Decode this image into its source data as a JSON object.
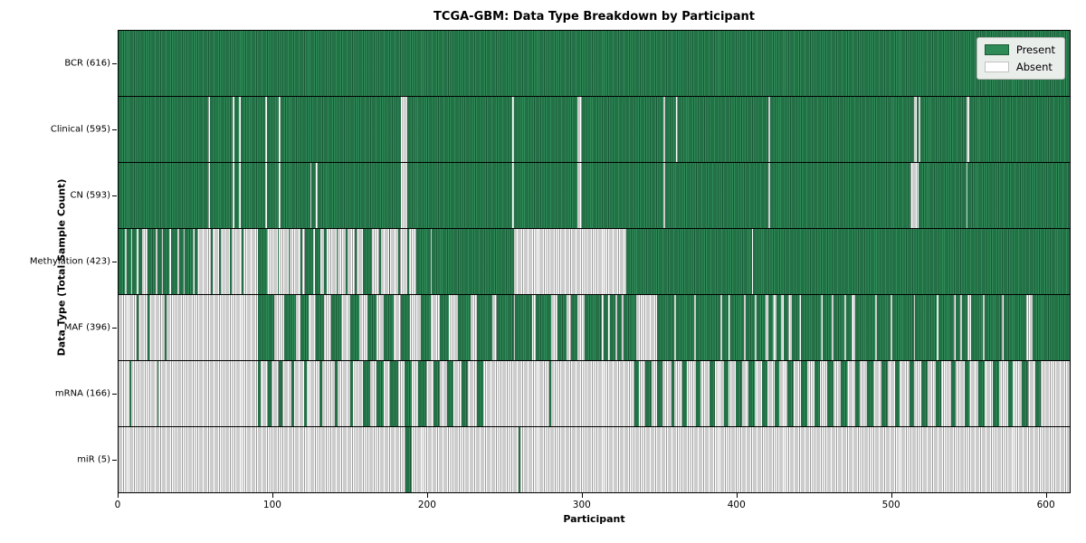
{
  "title": "TCGA-GBM: Data Type Breakdown by Participant",
  "x_axis": {
    "label": "Participant",
    "ticks": [
      0,
      100,
      200,
      300,
      400,
      500,
      600
    ],
    "max": 616
  },
  "y_axis": {
    "label": "Data Type (Total Sample Count)"
  },
  "legend": [
    {
      "label": "Present",
      "color": "#2e8b57"
    },
    {
      "label": "Absent",
      "color": "#ffffff"
    }
  ],
  "colors": {
    "present": "#2e8b57",
    "present_edge": "#1c5a38",
    "absent": "#ffffff",
    "absent_edge": "#9a9a9a",
    "separator": "#000000",
    "legend_bg": "#eaeeeb"
  },
  "chart_data": {
    "type": "heatmap",
    "title": "TCGA-GBM: Data Type Breakdown by Participant",
    "xlabel": "Participant",
    "ylabel": "Data Type (Total Sample Count)",
    "x_range": [
      0,
      616
    ],
    "x_ticks": [
      0,
      100,
      200,
      300,
      400,
      500,
      600
    ],
    "states": [
      "Present",
      "Absent"
    ],
    "n_participants": 616,
    "rows": [
      {
        "name": "BCR",
        "label": "BCR (616)",
        "total": 616,
        "present_runs": [
          [
            0,
            616
          ]
        ]
      },
      {
        "name": "Clinical",
        "label": "Clinical (595)",
        "total": 595,
        "present_runs": [
          [
            0,
            58
          ],
          [
            59,
            74
          ],
          [
            75,
            78
          ],
          [
            79,
            95
          ],
          [
            96,
            104
          ],
          [
            105,
            183
          ],
          [
            187,
            255
          ],
          [
            256,
            297
          ],
          [
            300,
            353
          ],
          [
            354,
            361
          ],
          [
            362,
            421
          ],
          [
            422,
            515
          ],
          [
            517,
            518
          ],
          [
            519,
            549
          ],
          [
            551,
            616
          ]
        ]
      },
      {
        "name": "CN",
        "label": "CN (593)",
        "total": 593,
        "present_runs": [
          [
            0,
            58
          ],
          [
            59,
            74
          ],
          [
            75,
            78
          ],
          [
            79,
            95
          ],
          [
            96,
            104
          ],
          [
            105,
            124
          ],
          [
            125,
            128
          ],
          [
            129,
            183
          ],
          [
            187,
            255
          ],
          [
            256,
            297
          ],
          [
            300,
            353
          ],
          [
            354,
            421
          ],
          [
            422,
            513
          ],
          [
            518,
            549
          ],
          [
            550,
            616
          ]
        ]
      },
      {
        "name": "Methylation",
        "label": "Methylation (423)",
        "total": 423,
        "present_runs": [
          [
            0,
            4
          ],
          [
            5,
            8
          ],
          [
            9,
            12
          ],
          [
            13,
            15
          ],
          [
            19,
            24
          ],
          [
            25,
            28
          ],
          [
            29,
            33
          ],
          [
            34,
            38
          ],
          [
            39,
            42
          ],
          [
            43,
            48
          ],
          [
            49,
            51
          ],
          [
            60,
            61
          ],
          [
            65,
            66
          ],
          [
            72,
            73
          ],
          [
            80,
            81
          ],
          [
            90,
            96
          ],
          [
            103,
            104
          ],
          [
            110,
            111
          ],
          [
            118,
            119
          ],
          [
            121,
            126
          ],
          [
            127,
            131
          ],
          [
            133,
            135
          ],
          [
            141,
            142
          ],
          [
            147,
            148
          ],
          [
            153,
            154
          ],
          [
            158,
            164
          ],
          [
            169,
            170
          ],
          [
            175,
            176
          ],
          [
            181,
            182
          ],
          [
            187,
            188
          ],
          [
            193,
            202
          ],
          [
            203,
            256
          ],
          [
            329,
            410
          ],
          [
            411,
            616
          ]
        ]
      },
      {
        "name": "MAF",
        "label": "MAF (396)",
        "total": 396,
        "present_runs": [
          [
            12,
            13
          ],
          [
            19,
            20
          ],
          [
            30,
            31
          ],
          [
            90,
            101
          ],
          [
            107,
            115
          ],
          [
            118,
            123
          ],
          [
            128,
            133
          ],
          [
            138,
            144
          ],
          [
            150,
            156
          ],
          [
            161,
            167
          ],
          [
            172,
            178
          ],
          [
            183,
            189
          ],
          [
            196,
            202
          ],
          [
            208,
            214
          ],
          [
            220,
            228
          ],
          [
            232,
            242
          ],
          [
            245,
            256
          ],
          [
            257,
            268
          ],
          [
            270,
            280
          ],
          [
            284,
            290
          ],
          [
            293,
            297
          ],
          [
            302,
            313
          ],
          [
            314,
            317
          ],
          [
            318,
            322
          ],
          [
            323,
            326
          ],
          [
            327,
            335
          ],
          [
            349,
            360
          ],
          [
            361,
            373
          ],
          [
            374,
            390
          ],
          [
            391,
            395
          ],
          [
            396,
            405
          ],
          [
            406,
            412
          ],
          [
            413,
            419
          ],
          [
            421,
            424
          ],
          [
            426,
            429
          ],
          [
            431,
            434
          ],
          [
            436,
            441
          ],
          [
            442,
            455
          ],
          [
            456,
            462
          ],
          [
            463,
            470
          ],
          [
            471,
            475
          ],
          [
            477,
            490
          ],
          [
            491,
            500
          ],
          [
            501,
            515
          ],
          [
            516,
            530
          ],
          [
            531,
            541
          ],
          [
            542,
            545
          ],
          [
            546,
            550
          ],
          [
            552,
            560
          ],
          [
            561,
            572
          ],
          [
            573,
            588
          ],
          [
            592,
            616
          ]
        ]
      },
      {
        "name": "mRNA",
        "label": "mRNA (166)",
        "total": 166,
        "present_runs": [
          [
            7,
            8
          ],
          [
            25,
            26
          ],
          [
            90,
            92
          ],
          [
            97,
            99
          ],
          [
            104,
            106
          ],
          [
            112,
            114
          ],
          [
            120,
            122
          ],
          [
            130,
            132
          ],
          [
            140,
            142
          ],
          [
            150,
            152
          ],
          [
            158,
            163
          ],
          [
            167,
            172
          ],
          [
            176,
            181
          ],
          [
            185,
            190
          ],
          [
            194,
            199
          ],
          [
            204,
            208
          ],
          [
            213,
            217
          ],
          [
            222,
            226
          ],
          [
            232,
            236
          ],
          [
            279,
            280
          ],
          [
            334,
            337
          ],
          [
            341,
            345
          ],
          [
            349,
            352
          ],
          [
            358,
            360
          ],
          [
            365,
            368
          ],
          [
            374,
            377
          ],
          [
            383,
            386
          ],
          [
            392,
            395
          ],
          [
            400,
            404
          ],
          [
            408,
            412
          ],
          [
            417,
            420
          ],
          [
            425,
            428
          ],
          [
            433,
            437
          ],
          [
            442,
            446
          ],
          [
            451,
            454
          ],
          [
            459,
            463
          ],
          [
            468,
            472
          ],
          [
            477,
            480
          ],
          [
            485,
            489
          ],
          [
            494,
            498
          ],
          [
            503,
            506
          ],
          [
            512,
            515
          ],
          [
            520,
            524
          ],
          [
            529,
            533
          ],
          [
            539,
            542
          ],
          [
            548,
            551
          ],
          [
            557,
            561
          ],
          [
            566,
            570
          ],
          [
            576,
            579
          ],
          [
            585,
            589
          ],
          [
            594,
            597
          ]
        ]
      },
      {
        "name": "miR",
        "label": "miR (5)",
        "total": 5,
        "present_runs": [
          [
            186,
            190
          ],
          [
            259,
            260
          ]
        ]
      }
    ]
  }
}
